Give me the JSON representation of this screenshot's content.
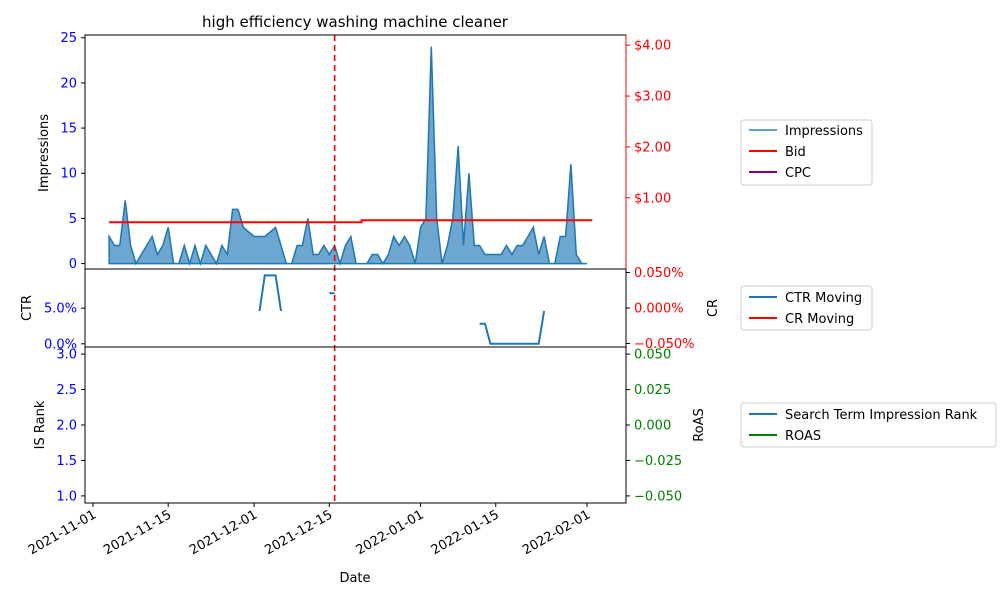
{
  "chart_data": [
    {
      "panel": "top",
      "type": "area",
      "title": "high efficiency washing machine cleaner",
      "ylabel": "Impressions",
      "ylim": [
        -0.6,
        25.3
      ],
      "yticks": [
        "0",
        "5",
        "10",
        "15",
        "20",
        "25"
      ],
      "y2lim": [
        -0.4,
        4.2
      ],
      "y2ticks": [
        "$1.00",
        "$2.00",
        "$3.00",
        "$4.00"
      ],
      "grid": false,
      "legend": {
        "position": "right",
        "entries": [
          "Impressions",
          "Bid",
          "CPC"
        ]
      },
      "series": [
        {
          "name": "Impressions",
          "color": "#1f77b4",
          "values": [
            [
              3,
              3
            ],
            [
              4,
              2
            ],
            [
              5,
              2
            ],
            [
              6,
              7
            ],
            [
              7,
              2
            ],
            [
              8,
              0
            ],
            [
              9,
              1
            ],
            [
              10,
              2
            ],
            [
              11,
              3
            ],
            [
              12,
              1
            ],
            [
              13,
              2
            ],
            [
              14,
              4
            ],
            [
              15,
              0
            ],
            [
              16,
              0
            ],
            [
              17,
              2
            ],
            [
              18,
              0
            ],
            [
              19,
              2
            ],
            [
              20,
              0
            ],
            [
              21,
              2
            ],
            [
              22,
              1
            ],
            [
              23,
              0
            ],
            [
              24,
              2
            ],
            [
              25,
              1
            ],
            [
              26,
              6
            ],
            [
              27,
              6
            ],
            [
              28,
              4
            ],
            [
              29,
              3.5
            ],
            [
              30,
              3
            ],
            [
              31,
              3
            ],
            [
              32,
              3
            ],
            [
              33,
              3.5
            ],
            [
              34,
              4
            ],
            [
              35,
              2
            ],
            [
              36,
              0
            ],
            [
              37,
              0
            ],
            [
              38,
              2
            ],
            [
              39,
              2
            ],
            [
              40,
              5
            ],
            [
              41,
              1
            ],
            [
              42,
              1
            ],
            [
              43,
              2
            ],
            [
              44,
              1
            ],
            [
              45,
              2
            ],
            [
              46,
              0
            ],
            [
              47,
              2
            ],
            [
              48,
              3
            ],
            [
              49,
              0
            ],
            [
              50,
              0
            ],
            [
              51,
              0
            ],
            [
              52,
              1
            ],
            [
              53,
              1
            ],
            [
              54,
              0
            ],
            [
              55,
              1
            ],
            [
              56,
              3
            ],
            [
              57,
              2
            ],
            [
              58,
              3
            ],
            [
              59,
              2
            ],
            [
              60,
              0
            ],
            [
              61,
              4
            ],
            [
              62,
              5
            ],
            [
              63,
              24
            ],
            [
              64,
              5
            ],
            [
              65,
              0
            ],
            [
              66,
              2
            ],
            [
              67,
              5
            ],
            [
              68,
              13
            ],
            [
              69,
              2
            ],
            [
              70,
              10
            ],
            [
              71,
              2
            ],
            [
              72,
              2
            ],
            [
              73,
              1
            ],
            [
              74,
              1
            ],
            [
              75,
              1
            ],
            [
              76,
              1
            ],
            [
              77,
              2
            ],
            [
              78,
              1
            ],
            [
              79,
              2
            ],
            [
              80,
              2
            ],
            [
              81,
              3
            ],
            [
              82,
              4
            ],
            [
              83,
              1
            ],
            [
              84,
              3
            ],
            [
              85,
              0
            ],
            [
              86,
              0
            ],
            [
              87,
              3
            ],
            [
              88,
              3
            ],
            [
              89,
              11
            ],
            [
              90,
              1
            ],
            [
              91,
              0
            ],
            [
              92,
              0
            ]
          ]
        },
        {
          "name": "Bid",
          "color": "#ff0000",
          "values": [
            [
              3,
              0.52
            ],
            [
              50,
              0.52
            ],
            [
              50,
              0.56
            ],
            [
              93,
              0.56
            ]
          ]
        },
        {
          "name": "CPC",
          "color": "#800080",
          "values": []
        }
      ]
    },
    {
      "panel": "middle",
      "type": "line",
      "ylabel": "CTR",
      "y2label": "CR",
      "yticks": [
        "0.0%",
        "5.0%"
      ],
      "y2ticks": [
        "−0.050%",
        "0.000%",
        "0.050%"
      ],
      "legend": {
        "position": "right",
        "entries": [
          "CTR Moving",
          "CR Moving"
        ]
      },
      "series": [
        {
          "name": "CTR Moving",
          "color": "#1f77b4",
          "segments": [
            [
              [
                31,
                4.6
              ],
              [
                32,
                9.6
              ],
              [
                33,
                9.6
              ],
              [
                34,
                9.6
              ],
              [
                35,
                4.6
              ]
            ],
            [
              [
                44,
                7.1
              ],
              [
                45,
                7.1
              ]
            ],
            [
              [
                72,
                2.8
              ],
              [
                73,
                2.8
              ],
              [
                74,
                0
              ],
              [
                83,
                0
              ],
              [
                84,
                4.6
              ]
            ]
          ]
        },
        {
          "name": "CR Moving",
          "color": "#ff0000",
          "segments": []
        }
      ]
    },
    {
      "panel": "bottom",
      "type": "line",
      "ylabel": "IS Rank",
      "y2label": "RoAS",
      "xlabel": "Date",
      "yticks": [
        "1.0",
        "1.5",
        "2.0",
        "2.5",
        "3.0"
      ],
      "y2ticks": [
        "−0.050",
        "−0.025",
        "0.000",
        "0.025",
        "0.050"
      ],
      "xticks": [
        "2021-11-01",
        "2021-11-15",
        "2021-12-01",
        "2021-12-15",
        "2022-01-01",
        "2022-01-15",
        "2022-02-01"
      ],
      "legend": {
        "position": "right",
        "entries": [
          "Search Term Impression Rank",
          "ROAS"
        ]
      },
      "series": [
        {
          "name": "Search Term Impression Rank",
          "color": "#1f77b4",
          "values": []
        },
        {
          "name": "ROAS",
          "color": "#008000",
          "values": []
        }
      ]
    }
  ],
  "marker": {
    "date": "2021-12-16",
    "color": "#ff0000"
  }
}
